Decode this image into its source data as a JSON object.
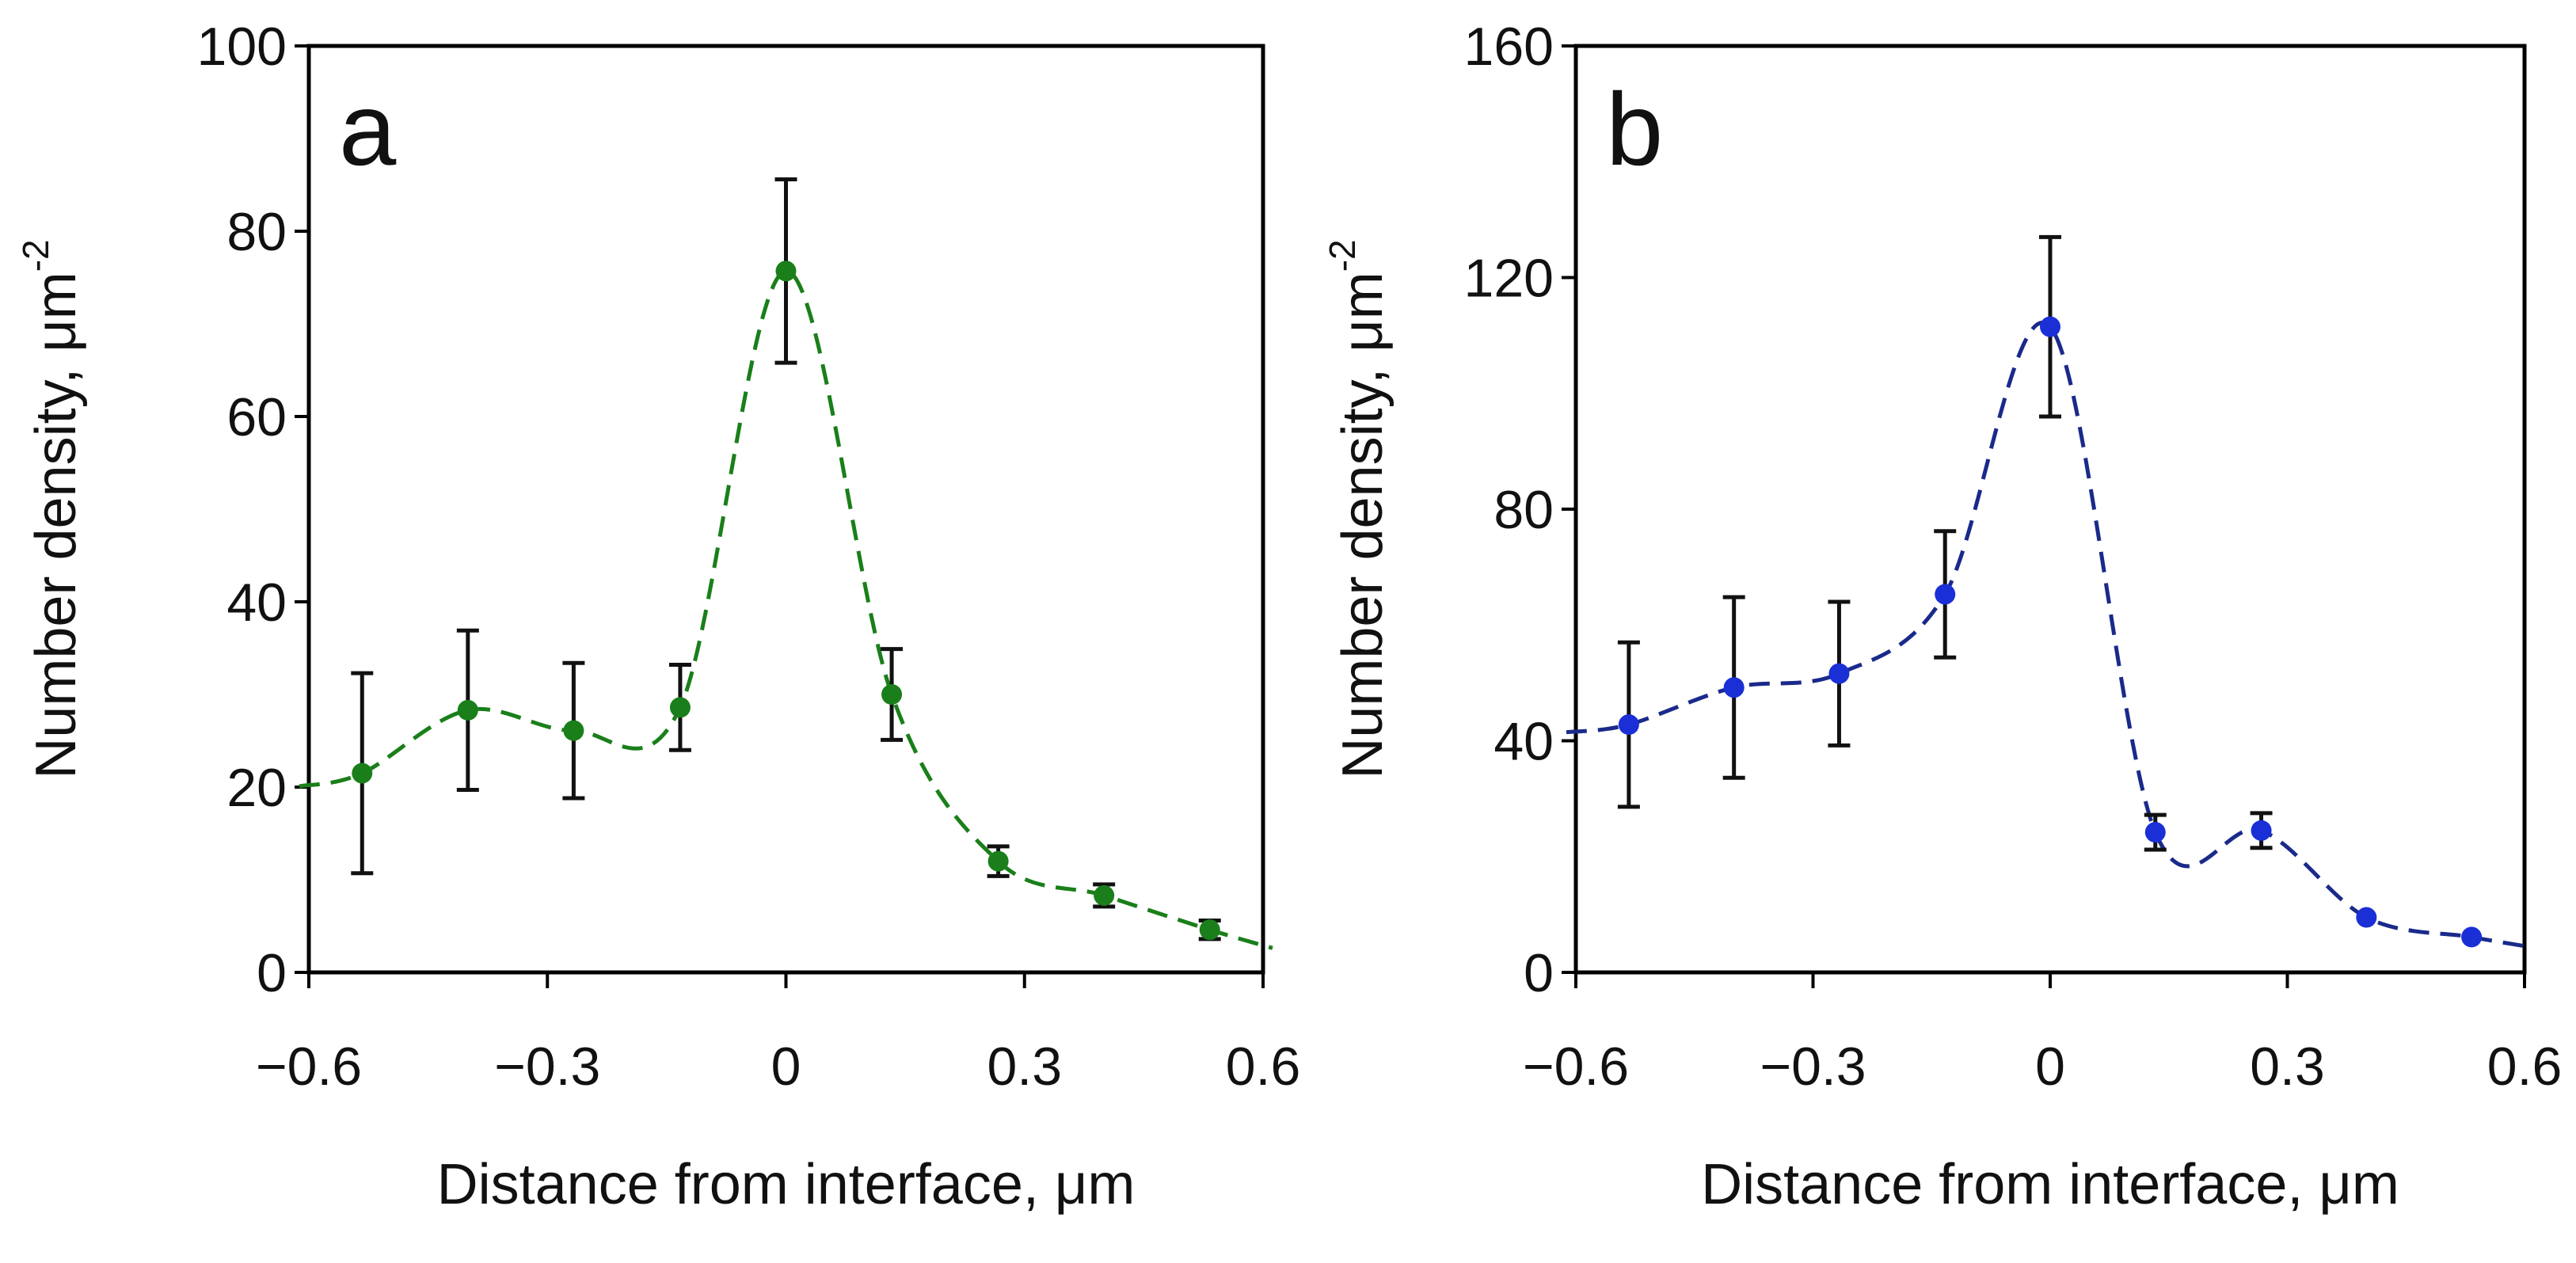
{
  "chart_data": [
    {
      "type": "line",
      "panel_label": "a",
      "xlabel": "Distance from interface, μm",
      "ylabel": "Number density, μm",
      "ylabel_superscript": "-2",
      "xlim": [
        -0.6,
        0.6
      ],
      "ylim": [
        0,
        100
      ],
      "xticks": [
        -0.6,
        -0.3,
        0,
        0.3,
        0.6
      ],
      "xtick_labels": [
        "−0.6",
        "−0.3",
        "0",
        "0.3",
        "0.6"
      ],
      "yticks": [
        0,
        20,
        40,
        60,
        80,
        100
      ],
      "ytick_labels": [
        "0",
        "20",
        "40",
        "60",
        "80",
        "100"
      ],
      "grid": false,
      "series": [
        {
          "color": "#1a7f1a",
          "line_style": "dashed",
          "x": [
            -0.533,
            -0.4,
            -0.267,
            -0.133,
            0,
            0.133,
            0.267,
            0.4,
            0.533
          ],
          "y": [
            21.5,
            28.3,
            26.1,
            28.6,
            75.7,
            30.0,
            12.0,
            8.3,
            4.6
          ],
          "error": [
            10.8,
            8.6,
            7.3,
            4.6,
            9.9,
            4.9,
            1.6,
            1.2,
            1.0
          ]
        }
      ]
    },
    {
      "type": "line",
      "panel_label": "b",
      "xlabel": "Distance from interface, μm",
      "ylabel": "Number density, μm",
      "ylabel_superscript": "-2",
      "xlim": [
        -0.6,
        0.6
      ],
      "ylim": [
        0,
        160
      ],
      "xticks": [
        -0.6,
        -0.3,
        0,
        0.3,
        0.6
      ],
      "xtick_labels": [
        "−0.6",
        "−0.3",
        "0",
        "0.3",
        "0.6"
      ],
      "yticks": [
        0,
        40,
        80,
        120,
        160
      ],
      "ytick_labels": [
        "0",
        "40",
        "80",
        "120",
        "160"
      ],
      "grid": false,
      "series": [
        {
          "color": "#1a2fd6",
          "line_color": "#1a2a8a",
          "line_style": "dashed",
          "x": [
            -0.533,
            -0.4,
            -0.267,
            -0.133,
            0,
            0.133,
            0.267,
            0.4,
            0.533
          ],
          "y": [
            42.8,
            49.2,
            51.6,
            65.3,
            111.5,
            24.2,
            24.5,
            9.5,
            6.1
          ],
          "error": [
            14.2,
            15.6,
            12.4,
            10.9,
            15.5,
            3.0,
            3.0,
            0,
            0
          ]
        }
      ]
    }
  ]
}
